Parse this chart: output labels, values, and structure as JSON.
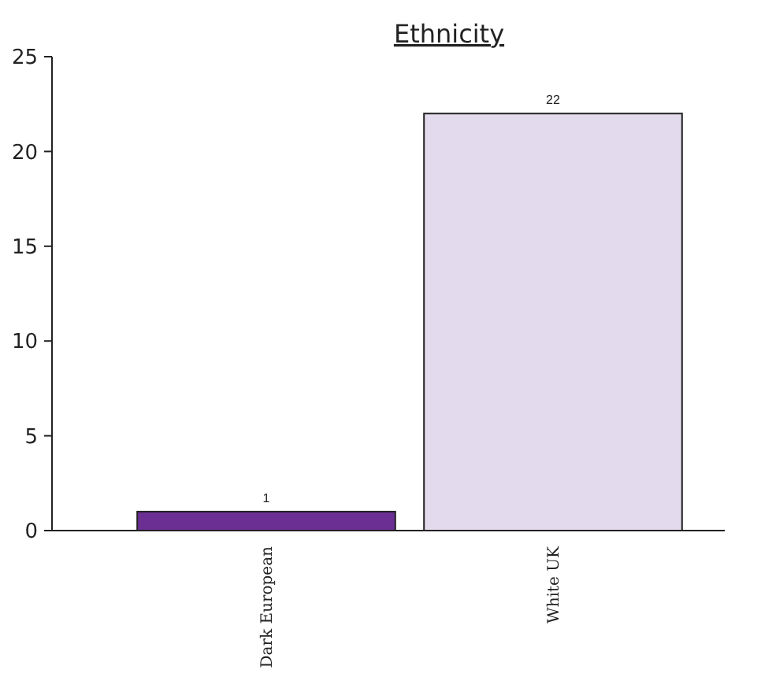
{
  "chart_data": {
    "type": "bar",
    "title": "Ethnicity",
    "categories": [
      "Dark European",
      "White UK"
    ],
    "values": [
      1,
      22
    ],
    "colors": [
      "#6b2f93",
      "#e3dbed"
    ],
    "ylim": [
      0,
      25
    ],
    "yticks": [
      0,
      5,
      10,
      15,
      20,
      25
    ],
    "data_labels": true
  }
}
